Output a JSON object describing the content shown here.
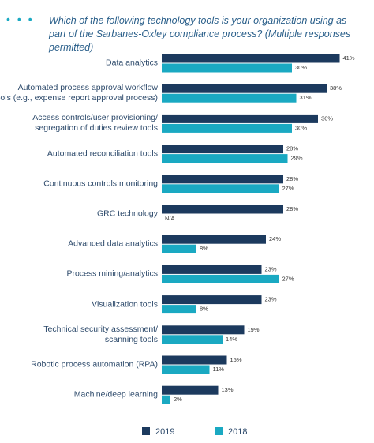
{
  "chart_data": {
    "type": "bar",
    "orientation": "horizontal",
    "title": "Which of the following technology tools is your organization using as part of the Sarbanes-Oxley compliance process? (Multiple responses permitted)",
    "categories": [
      "Data analytics",
      "Automated process approval workflow\ntools (e.g., expense report approval process)",
      "Access controls/user provisioning/\nsegregation of duties review tools",
      "Automated reconciliation tools",
      "Continuous controls monitoring",
      "GRC technology",
      "Advanced data analytics",
      "Process mining/analytics",
      "Visualization tools",
      "Technical security assessment/\nscanning tools",
      "Robotic process automation (RPA)",
      "Machine/deep learning"
    ],
    "series": [
      {
        "name": "2019",
        "color": "#1c3a5e",
        "values": [
          41,
          38,
          36,
          28,
          28,
          28,
          24,
          23,
          23,
          19,
          15,
          13
        ],
        "value_labels": [
          "41%",
          "38%",
          "36%",
          "28%",
          "28%",
          "28%",
          "24%",
          "23%",
          "23%",
          "19%",
          "15%",
          "13%"
        ]
      },
      {
        "name": "2018",
        "color": "#1aa9c2",
        "values": [
          30,
          31,
          30,
          29,
          27,
          null,
          8,
          27,
          8,
          14,
          11,
          2
        ],
        "value_labels": [
          "30%",
          "31%",
          "30%",
          "29%",
          "27%",
          "N/A",
          "8%",
          "27%",
          "8%",
          "14%",
          "11%",
          "2%"
        ]
      }
    ]
  }
}
